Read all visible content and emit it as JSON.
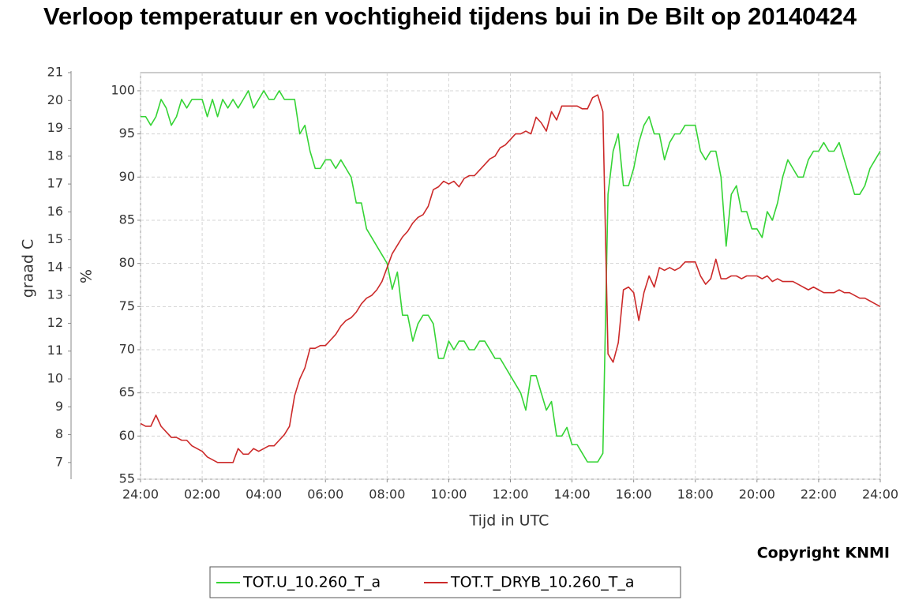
{
  "chart_data": {
    "type": "line",
    "title": "Verloop temperatuur en vochtigheid tijdens bui in De Bilt op 20140424",
    "xlabel": "Tijd in UTC",
    "ylabel": "%",
    "y2label": "graad C",
    "annotation": "Copyright KNMI",
    "grid": true,
    "xlim": [
      0,
      1440
    ],
    "xticks": [
      {
        "value": 0,
        "label": "24:00"
      },
      {
        "value": 120,
        "label": "02:00"
      },
      {
        "value": 240,
        "label": "04:00"
      },
      {
        "value": 360,
        "label": "06:00"
      },
      {
        "value": 480,
        "label": "08:00"
      },
      {
        "value": 600,
        "label": "10:00"
      },
      {
        "value": 720,
        "label": "12:00"
      },
      {
        "value": 840,
        "label": "14:00"
      },
      {
        "value": 960,
        "label": "16:00"
      },
      {
        "value": 1080,
        "label": "18:00"
      },
      {
        "value": 1200,
        "label": "20:00"
      },
      {
        "value": 1320,
        "label": "22:00"
      },
      {
        "value": 1440,
        "label": "24:00"
      }
    ],
    "ylim": [
      55,
      102.1
    ],
    "yticks": [
      55,
      60,
      65,
      70,
      75,
      80,
      85,
      90,
      95,
      100
    ],
    "y2lim": [
      6.4,
      21
    ],
    "y2ticks": [
      7,
      8,
      9,
      10,
      11,
      12,
      13,
      14,
      15,
      16,
      17,
      18,
      19,
      20,
      21
    ],
    "x": [
      0,
      10,
      20,
      30,
      40,
      50,
      60,
      70,
      80,
      90,
      100,
      110,
      120,
      130,
      140,
      150,
      160,
      170,
      180,
      190,
      200,
      210,
      220,
      230,
      240,
      250,
      260,
      270,
      280,
      290,
      300,
      310,
      320,
      330,
      340,
      350,
      360,
      370,
      380,
      390,
      400,
      410,
      420,
      430,
      440,
      450,
      460,
      470,
      480,
      490,
      500,
      510,
      520,
      530,
      540,
      550,
      560,
      570,
      580,
      590,
      600,
      610,
      620,
      630,
      640,
      650,
      660,
      670,
      680,
      690,
      700,
      710,
      720,
      730,
      740,
      750,
      760,
      770,
      780,
      790,
      800,
      810,
      820,
      830,
      840,
      850,
      860,
      870,
      880,
      890,
      900,
      910,
      920,
      930,
      940,
      950,
      960,
      970,
      980,
      990,
      1000,
      1010,
      1020,
      1030,
      1040,
      1050,
      1060,
      1070,
      1080,
      1090,
      1100,
      1110,
      1120,
      1130,
      1140,
      1150,
      1160,
      1170,
      1180,
      1190,
      1200,
      1210,
      1220,
      1230,
      1240,
      1250,
      1260,
      1270,
      1280,
      1290,
      1300,
      1310,
      1320,
      1330,
      1340,
      1350,
      1360,
      1370,
      1380,
      1390,
      1400,
      1410,
      1420,
      1430,
      1440
    ],
    "series": [
      {
        "name": "TOT.U_10.260_T_a",
        "color": "#35d435",
        "axis": "y",
        "values": [
          97,
          97,
          96,
          97,
          99,
          98,
          96,
          97,
          99,
          98,
          99,
          99,
          99,
          97,
          99,
          97,
          99,
          98,
          99,
          98,
          99,
          100,
          98,
          99,
          100,
          99,
          99,
          100,
          99,
          99,
          99,
          95,
          96,
          93,
          91,
          91,
          92,
          92,
          91,
          92,
          91,
          90,
          87,
          87,
          84,
          83,
          82,
          81,
          80,
          77,
          79,
          74,
          74,
          71,
          73,
          74,
          74,
          73,
          69,
          69,
          71,
          70,
          71,
          71,
          70,
          70,
          71,
          71,
          70,
          69,
          69,
          68,
          67,
          66,
          65,
          63,
          67,
          67,
          65,
          63,
          64,
          60,
          60,
          61,
          59,
          59,
          58,
          57,
          57,
          57,
          58,
          88,
          93,
          95,
          89,
          89,
          91,
          94,
          96,
          97,
          95,
          95,
          92,
          94,
          95,
          95,
          96,
          96,
          96,
          93,
          92,
          93,
          93,
          90,
          82,
          88,
          89,
          86,
          86,
          84,
          84,
          83,
          86,
          85,
          87,
          90,
          92,
          91,
          90,
          90,
          92,
          93,
          93,
          94,
          93,
          93,
          94,
          92,
          90,
          88,
          88,
          89,
          91,
          92,
          93
        ]
      },
      {
        "name": "TOT.T_DRYB_10.260_T_a",
        "color": "#cc2a2a",
        "axis": "y2",
        "values": [
          8.4,
          8.3,
          8.3,
          8.7,
          8.3,
          8.1,
          7.9,
          7.9,
          7.8,
          7.8,
          7.6,
          7.5,
          7.4,
          7.2,
          7.1,
          7.0,
          7.0,
          7.0,
          7.0,
          7.5,
          7.3,
          7.3,
          7.5,
          7.4,
          7.5,
          7.6,
          7.6,
          7.8,
          8.0,
          8.3,
          9.4,
          10.0,
          10.4,
          11.1,
          11.1,
          11.2,
          11.2,
          11.4,
          11.6,
          11.9,
          12.1,
          12.2,
          12.4,
          12.7,
          12.9,
          13.0,
          13.2,
          13.5,
          14.0,
          14.5,
          14.8,
          15.1,
          15.3,
          15.6,
          15.8,
          15.9,
          16.2,
          16.8,
          16.9,
          17.1,
          17.0,
          17.1,
          16.9,
          17.2,
          17.3,
          17.3,
          17.5,
          17.7,
          17.9,
          18.0,
          18.3,
          18.4,
          18.6,
          18.8,
          18.8,
          18.9,
          18.8,
          19.4,
          19.2,
          18.9,
          19.6,
          19.3,
          19.8,
          19.8,
          19.8,
          19.8,
          19.7,
          19.7,
          20.1,
          20.2,
          19.6,
          10.9,
          10.6,
          11.3,
          13.2,
          13.3,
          13.1,
          12.1,
          13.1,
          13.7,
          13.3,
          14.0,
          13.9,
          14.0,
          13.9,
          14.0,
          14.2,
          14.2,
          14.2,
          13.7,
          13.4,
          13.6,
          14.3,
          13.6,
          13.6,
          13.7,
          13.7,
          13.6,
          13.7,
          13.7,
          13.7,
          13.6,
          13.7,
          13.5,
          13.6,
          13.5,
          13.5,
          13.5,
          13.4,
          13.3,
          13.2,
          13.3,
          13.2,
          13.1,
          13.1,
          13.1,
          13.2,
          13.1,
          13.1,
          13.0,
          12.9,
          12.9,
          12.8,
          12.7,
          12.6
        ]
      }
    ]
  }
}
